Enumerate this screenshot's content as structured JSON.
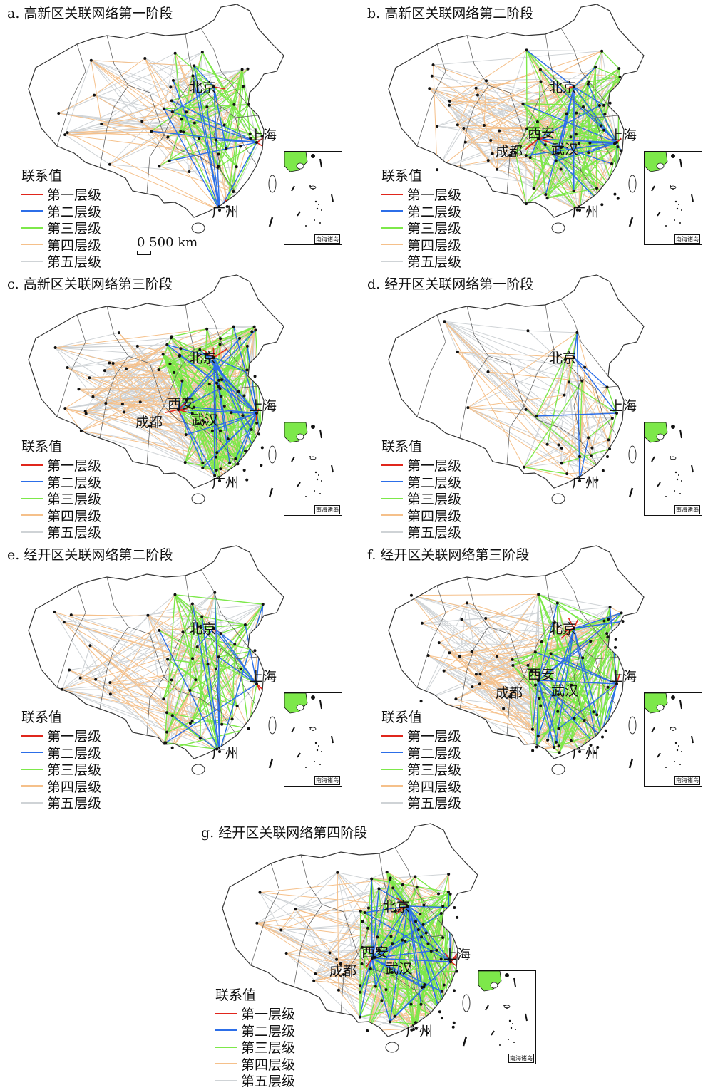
{
  "colors": {
    "level1": "#e0261c",
    "level2": "#2c6ee8",
    "level3": "#7de84a",
    "level4": "#f5c08a",
    "level5": "#cfd3d6",
    "boundary": "#333333",
    "node": "#111111"
  },
  "legend": {
    "title": "联系值",
    "items": [
      "第一层级",
      "第二层级",
      "第三层级",
      "第四层级",
      "第五层级"
    ]
  },
  "scalebar": {
    "label": "0  500 km"
  },
  "inset_caption": "南海诸岛",
  "panels": [
    {
      "id": "a",
      "title": "a. 高新区关联网络第一阶段",
      "cities": [
        "北京",
        "上海",
        "广州"
      ],
      "intensity": 1
    },
    {
      "id": "b",
      "title": "b. 高新区关联网络第二阶段",
      "cities": [
        "北京",
        "西安",
        "上海",
        "成都",
        "武汉",
        "广州"
      ],
      "intensity": 2
    },
    {
      "id": "c",
      "title": "c. 高新区关联网络第三阶段",
      "cities": [
        "北京",
        "西安",
        "上海",
        "成都",
        "武汉",
        "广州"
      ],
      "intensity": 3
    },
    {
      "id": "d",
      "title": "d. 经开区关联网络第一阶段",
      "cities": [
        "北京",
        "上海",
        "广州"
      ],
      "intensity": 0
    },
    {
      "id": "e",
      "title": "e. 经开区关联网络第二阶段",
      "cities": [
        "北京",
        "上海",
        "广州"
      ],
      "intensity": 1
    },
    {
      "id": "f",
      "title": "f. 经开区关联网络第三阶段",
      "cities": [
        "北京",
        "西安",
        "上海",
        "成都",
        "武汉",
        "广州"
      ],
      "intensity": 2
    },
    {
      "id": "g",
      "title": "g. 经开区关联网络第四阶段",
      "cities": [
        "北京",
        "西安",
        "上海",
        "成都",
        "武汉",
        "广州"
      ],
      "intensity": 3
    }
  ]
}
